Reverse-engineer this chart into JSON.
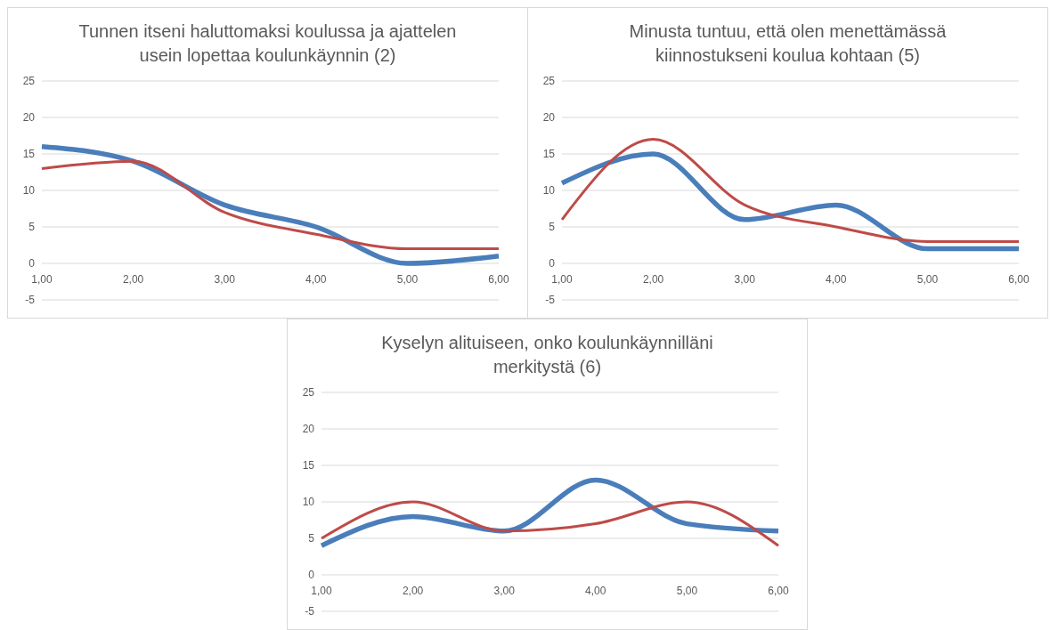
{
  "chart_data": [
    {
      "type": "line",
      "title": "Tunnen itseni haluttomaksi koulussa ja ajattelen usein lopettaa koulunkäynnin (2)",
      "categories": [
        "1,00",
        "2,00",
        "3,00",
        "4,00",
        "5,00",
        "6,00"
      ],
      "series": [
        {
          "color": "#4a7ebb",
          "values": [
            16,
            14,
            8,
            5,
            0,
            1
          ]
        },
        {
          "color": "#be4b48",
          "values": [
            13,
            14,
            7,
            4,
            2,
            2
          ]
        }
      ],
      "ylim": [
        -5,
        25
      ],
      "yticks": [
        -5,
        0,
        5,
        10,
        15,
        20,
        25
      ],
      "grid": "y"
    },
    {
      "type": "line",
      "title": "Minusta tuntuu, että olen menettämässä kiinnostukseni koulua kohtaan (5)",
      "categories": [
        "1,00",
        "2,00",
        "3,00",
        "4,00",
        "5,00",
        "6,00"
      ],
      "series": [
        {
          "color": "#4a7ebb",
          "values": [
            11,
            15,
            6,
            8,
            2,
            2
          ]
        },
        {
          "color": "#be4b48",
          "values": [
            6,
            17,
            8,
            5,
            3,
            3
          ]
        }
      ],
      "ylim": [
        -5,
        25
      ],
      "yticks": [
        -5,
        0,
        5,
        10,
        15,
        20,
        25
      ],
      "grid": "y"
    },
    {
      "type": "line",
      "title": "Kyselyn alituiseen, onko koulunkäynnilläni merkitystä (6)",
      "categories": [
        "1,00",
        "2,00",
        "3,00",
        "4,00",
        "5,00",
        "6,00"
      ],
      "series": [
        {
          "color": "#4a7ebb",
          "values": [
            4,
            8,
            6,
            13,
            7,
            6
          ]
        },
        {
          "color": "#be4b48",
          "values": [
            5,
            10,
            6,
            7,
            10,
            4
          ]
        }
      ],
      "ylim": [
        -5,
        25
      ],
      "yticks": [
        -5,
        0,
        5,
        10,
        15,
        20,
        25
      ],
      "grid": "y"
    }
  ]
}
